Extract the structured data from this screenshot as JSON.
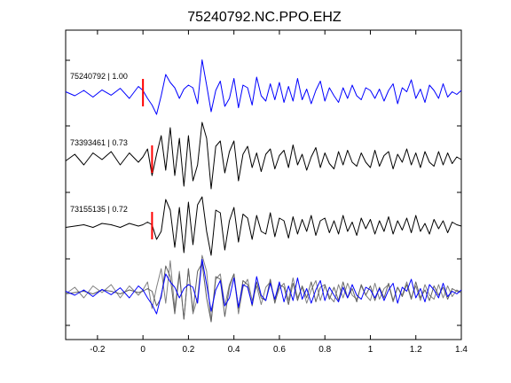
{
  "chart_data": {
    "type": "line",
    "title": "75240792.NC.PPO.EHZ",
    "xlabel": "",
    "ylabel": "",
    "xlim": [
      -0.34,
      1.4
    ],
    "xticks": [
      -0.2,
      0,
      0.2,
      0.4,
      0.6,
      0.8,
      1,
      1.2,
      1.4
    ],
    "xtick_labels": [
      "-0.2",
      "0",
      "0.2",
      "0.4",
      "0.6",
      "0.8",
      "1",
      "1.2",
      "1.4"
    ],
    "grid": false,
    "legend": "none",
    "colors": {
      "reference": "#0000ff",
      "aligned": "#000000",
      "overlay_gray": "#808080",
      "pick": "#ff0000"
    },
    "traces": [
      {
        "label": "75240792 | 1.00",
        "color": "#0000ff",
        "pick_time": 0.0,
        "x": [
          -0.34,
          -0.3,
          -0.26,
          -0.22,
          -0.18,
          -0.14,
          -0.1,
          -0.06,
          -0.02,
          0.0,
          0.02,
          0.04,
          0.06,
          0.08,
          0.1,
          0.12,
          0.14,
          0.16,
          0.18,
          0.2,
          0.22,
          0.24,
          0.26,
          0.28,
          0.3,
          0.32,
          0.34,
          0.36,
          0.38,
          0.4,
          0.42,
          0.44,
          0.46,
          0.48,
          0.5,
          0.52,
          0.54,
          0.56,
          0.58,
          0.6,
          0.62,
          0.64,
          0.66,
          0.68,
          0.7,
          0.72,
          0.74,
          0.76,
          0.78,
          0.8,
          0.82,
          0.84,
          0.86,
          0.88,
          0.9,
          0.92,
          0.94,
          0.96,
          0.98,
          1.0,
          1.02,
          1.04,
          1.06,
          1.08,
          1.1,
          1.12,
          1.14,
          1.16,
          1.18,
          1.2,
          1.22,
          1.24,
          1.26,
          1.28,
          1.3,
          1.32,
          1.34,
          1.36,
          1.38,
          1.4
        ],
        "y": [
          0.05,
          -0.1,
          0.1,
          -0.15,
          0.12,
          -0.08,
          0.18,
          -0.2,
          0.25,
          0.1,
          -0.2,
          -0.45,
          -0.8,
          -0.1,
          0.7,
          0.4,
          0.2,
          -0.2,
          0.15,
          0.3,
          0.2,
          -0.4,
          1.25,
          0.3,
          -0.7,
          0.1,
          0.45,
          -0.5,
          -0.2,
          0.55,
          -0.55,
          0.3,
          0.2,
          -0.45,
          0.6,
          -0.1,
          -0.3,
          0.35,
          -0.25,
          0.4,
          -0.35,
          0.25,
          -0.3,
          0.55,
          -0.25,
          0.15,
          -0.4,
          0.1,
          0.45,
          -0.3,
          0.2,
          -0.1,
          -0.35,
          0.2,
          -0.2,
          0.3,
          -0.1,
          -0.25,
          0.2,
          0.1,
          -0.2,
          0.15,
          -0.3,
          0.1,
          0.35,
          -0.4,
          0.2,
          0.05,
          0.5,
          -0.2,
          0.15,
          -0.35,
          0.3,
          0.1,
          -0.2,
          0.35,
          -0.15,
          0.05,
          -0.05,
          0.1
        ]
      },
      {
        "label": "73393461 | 0.73",
        "color": "#000000",
        "pick_time": 0.04,
        "x": [
          -0.34,
          -0.3,
          -0.26,
          -0.22,
          -0.18,
          -0.14,
          -0.1,
          -0.06,
          -0.02,
          0.0,
          0.02,
          0.04,
          0.06,
          0.08,
          0.1,
          0.12,
          0.14,
          0.16,
          0.18,
          0.2,
          0.22,
          0.24,
          0.26,
          0.28,
          0.3,
          0.32,
          0.34,
          0.36,
          0.38,
          0.4,
          0.42,
          0.44,
          0.46,
          0.48,
          0.5,
          0.52,
          0.54,
          0.56,
          0.58,
          0.6,
          0.62,
          0.64,
          0.66,
          0.68,
          0.7,
          0.72,
          0.74,
          0.76,
          0.78,
          0.8,
          0.82,
          0.84,
          0.86,
          0.88,
          0.9,
          0.92,
          0.94,
          0.96,
          0.98,
          1.0,
          1.02,
          1.04,
          1.06,
          1.08,
          1.1,
          1.12,
          1.14,
          1.16,
          1.18,
          1.2,
          1.22,
          1.24,
          1.26,
          1.28,
          1.3,
          1.32,
          1.34,
          1.36,
          1.38,
          1.4
        ],
        "y": [
          -0.05,
          0.2,
          -0.2,
          0.25,
          0.0,
          0.3,
          -0.2,
          0.25,
          -0.1,
          0.1,
          0.4,
          -0.6,
          0.2,
          0.9,
          -0.4,
          1.2,
          -0.6,
          0.8,
          -1.0,
          0.9,
          -0.8,
          -0.2,
          1.4,
          0.8,
          -1.1,
          0.5,
          0.7,
          -0.5,
          0.3,
          0.7,
          -0.8,
          0.2,
          0.5,
          -0.3,
          0.25,
          -0.45,
          0.2,
          0.4,
          -0.35,
          0.15,
          0.35,
          -0.3,
          0.55,
          -0.2,
          0.2,
          -0.4,
          0.1,
          0.45,
          -0.3,
          0.25,
          -0.15,
          -0.35,
          0.3,
          -0.2,
          0.35,
          -0.1,
          -0.25,
          0.25,
          -0.1,
          -0.3,
          0.35,
          -0.25,
          0.15,
          0.3,
          -0.35,
          0.2,
          -0.1,
          0.4,
          -0.2,
          0.25,
          -0.3,
          0.3,
          -0.1,
          -0.25,
          0.3,
          -0.2,
          0.25,
          -0.15,
          0.1,
          0.0
        ]
      },
      {
        "label": "73155135 | 0.72",
        "color": "#000000",
        "pick_time": 0.04,
        "x": [
          -0.34,
          -0.3,
          -0.26,
          -0.22,
          -0.18,
          -0.14,
          -0.1,
          -0.06,
          -0.02,
          0.0,
          0.02,
          0.04,
          0.06,
          0.08,
          0.1,
          0.12,
          0.14,
          0.16,
          0.18,
          0.2,
          0.22,
          0.24,
          0.26,
          0.28,
          0.3,
          0.32,
          0.34,
          0.36,
          0.38,
          0.4,
          0.42,
          0.44,
          0.46,
          0.48,
          0.5,
          0.52,
          0.54,
          0.56,
          0.58,
          0.6,
          0.62,
          0.64,
          0.66,
          0.68,
          0.7,
          0.72,
          0.74,
          0.76,
          0.78,
          0.8,
          0.82,
          0.84,
          0.86,
          0.88,
          0.9,
          0.92,
          0.94,
          0.96,
          0.98,
          1.0,
          1.02,
          1.04,
          1.06,
          1.08,
          1.1,
          1.12,
          1.14,
          1.16,
          1.18,
          1.2,
          1.22,
          1.24,
          1.26,
          1.28,
          1.3,
          1.32,
          1.34,
          1.36,
          1.38,
          1.4
        ],
        "y": [
          -0.05,
          0.0,
          0.05,
          -0.05,
          0.1,
          0.05,
          -0.05,
          0.1,
          0.0,
          0.05,
          0.15,
          0.05,
          -0.5,
          -0.2,
          1.0,
          0.6,
          -0.8,
          0.7,
          -1.0,
          0.9,
          -0.7,
          0.8,
          1.1,
          -0.2,
          -1.1,
          0.6,
          0.5,
          -0.9,
          0.2,
          0.7,
          -0.6,
          0.45,
          0.3,
          -0.5,
          0.4,
          -0.2,
          -0.3,
          0.5,
          -0.4,
          0.3,
          0.2,
          -0.45,
          0.35,
          -0.3,
          0.25,
          -0.2,
          0.4,
          -0.35,
          0.2,
          0.3,
          -0.25,
          0.2,
          -0.3,
          0.4,
          -0.2,
          0.15,
          -0.35,
          0.3,
          -0.1,
          0.25,
          -0.3,
          0.2,
          -0.2,
          0.35,
          -0.3,
          0.2,
          -0.15,
          0.3,
          -0.25,
          0.4,
          -0.2,
          0.1,
          -0.3,
          0.25,
          -0.1,
          0.2,
          -0.25,
          0.15,
          0.05,
          0.0
        ]
      }
    ],
    "overlay": {
      "series": [
        "75240792 | 1.00",
        "73393461 | 0.73",
        "73155135 | 0.72"
      ],
      "colors": [
        "#0000ff",
        "#808080",
        "#606060"
      ]
    }
  }
}
